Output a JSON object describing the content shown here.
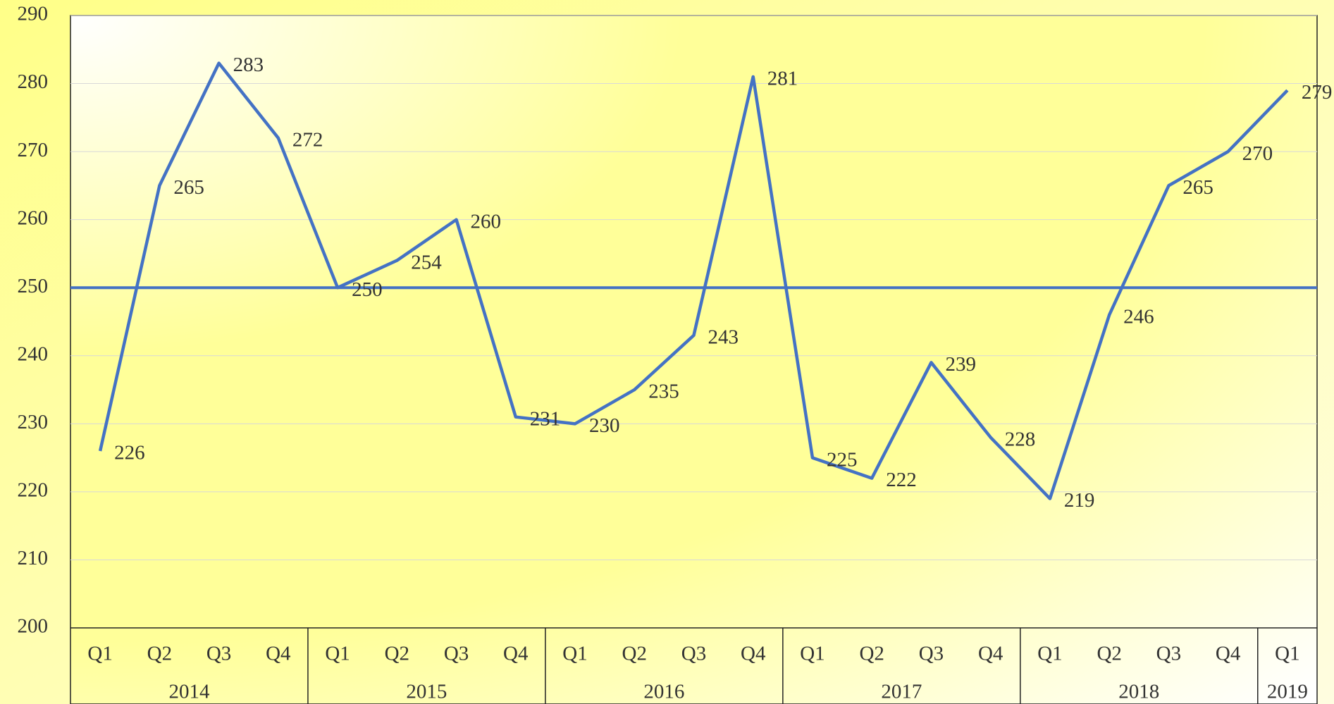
{
  "chart_data": {
    "type": "line",
    "groups": [
      {
        "label": "2014",
        "categories": [
          "Q1",
          "Q2",
          "Q3",
          "Q4"
        ]
      },
      {
        "label": "2015",
        "categories": [
          "Q1",
          "Q2",
          "Q3",
          "Q4"
        ]
      },
      {
        "label": "2016",
        "categories": [
          "Q1",
          "Q2",
          "Q3",
          "Q4"
        ]
      },
      {
        "label": "2017",
        "categories": [
          "Q1",
          "Q2",
          "Q3",
          "Q4"
        ]
      },
      {
        "label": "2018",
        "categories": [
          "Q1",
          "Q2",
          "Q3",
          "Q4"
        ]
      },
      {
        "label": "2019",
        "categories": [
          "Q1"
        ]
      }
    ],
    "values": [
      226,
      265,
      283,
      272,
      250,
      254,
      260,
      231,
      230,
      235,
      243,
      281,
      225,
      222,
      239,
      228,
      219,
      246,
      265,
      270,
      279
    ],
    "color": "#4472c4",
    "reference_line": 250,
    "ylim": [
      200,
      290
    ],
    "yticks": [
      200,
      210,
      220,
      230,
      240,
      250,
      260,
      270,
      280,
      290
    ],
    "grid": true
  }
}
